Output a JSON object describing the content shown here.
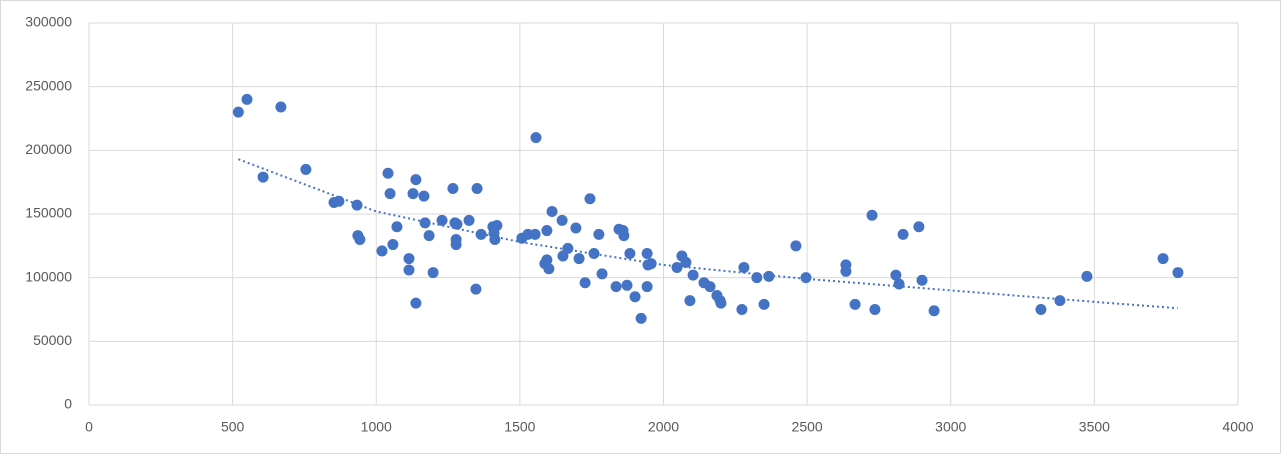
{
  "chart_data": {
    "type": "scatter",
    "x": [
      520,
      550,
      668,
      606,
      755,
      853,
      870,
      933,
      936,
      943,
      1020,
      1041,
      1048,
      1058,
      1072,
      1114,
      1114,
      1128,
      1138,
      1138,
      1166,
      1170,
      1184,
      1198,
      1229,
      1267,
      1274,
      1281,
      1278,
      1278,
      1323,
      1351,
      1347,
      1365,
      1406,
      1420,
      1413,
      1410,
      1507,
      1528,
      1553,
      1556,
      1587,
      1594,
      1601,
      1594,
      1612,
      1647,
      1650,
      1667,
      1695,
      1706,
      1727,
      1744,
      1758,
      1775,
      1786,
      1835,
      1845,
      1859,
      1862,
      1873,
      1883,
      1901,
      1922,
      1943,
      1946,
      1957,
      1943,
      2047,
      2064,
      2078,
      2092,
      2103,
      2141,
      2162,
      2186,
      2200,
      2197,
      2273,
      2280,
      2325,
      2350,
      2367,
      2461,
      2496,
      2635,
      2635,
      2667,
      2726,
      2736,
      2809,
      2820,
      2834,
      2889,
      2900,
      2942,
      3314,
      3380,
      3474,
      3739,
      3791
    ],
    "values": [
      230000,
      240000,
      234000,
      179000,
      185000,
      159000,
      160000,
      157000,
      133000,
      130000,
      121000,
      182000,
      166000,
      126000,
      140000,
      115000,
      106000,
      166000,
      177000,
      80000,
      164000,
      143000,
      133000,
      104000,
      145000,
      170000,
      143000,
      142000,
      130000,
      126000,
      145000,
      170000,
      91000,
      134000,
      140000,
      141000,
      130000,
      135000,
      131000,
      134000,
      134000,
      210000,
      111000,
      114000,
      107000,
      137000,
      152000,
      145000,
      117000,
      123000,
      139000,
      115000,
      96000,
      162000,
      119000,
      134000,
      103000,
      93000,
      138000,
      137000,
      133000,
      94000,
      119000,
      85000,
      68000,
      119000,
      110000,
      111000,
      93000,
      108000,
      117000,
      112000,
      82000,
      102000,
      96000,
      93000,
      86000,
      80000,
      82000,
      75000,
      108000,
      100000,
      79000,
      101000,
      125000,
      100000,
      110000,
      105000,
      79000,
      149000,
      75000,
      102000,
      95000,
      134000,
      140000,
      98000,
      74000,
      75000,
      82000,
      101000,
      115000,
      104000
    ],
    "color": "#4472c4",
    "trendline": {
      "x": [
        520,
        1000,
        1500,
        2000,
        2500,
        3000,
        3500,
        3790
      ],
      "values": [
        193000,
        152000,
        128000,
        110000,
        99000,
        90000,
        81000,
        76000
      ],
      "color": "#4472c4"
    },
    "xlim": [
      0,
      4000
    ],
    "xticks": [
      0,
      500,
      1000,
      1500,
      2000,
      2500,
      3000,
      3500,
      4000
    ],
    "ylim": [
      0,
      300000
    ],
    "yticks": [
      0,
      50000,
      100000,
      150000,
      200000,
      250000,
      300000
    ],
    "grid": true
  }
}
